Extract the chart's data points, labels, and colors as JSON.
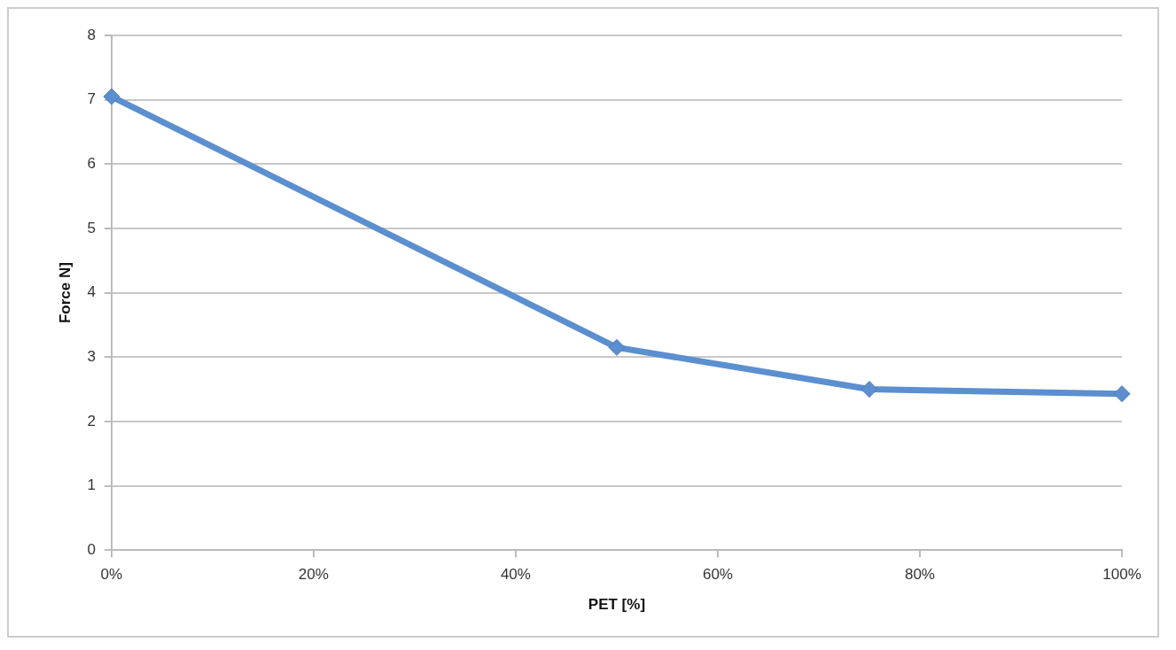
{
  "chart_data": {
    "type": "line",
    "xlabel": "PET [%]",
    "ylabel": "Force N]",
    "x": [
      0,
      50,
      75,
      100
    ],
    "series": [
      {
        "color": "#5b8fd0",
        "values": [
          7.05,
          3.15,
          2.5,
          2.43
        ]
      }
    ],
    "xlim": [
      0,
      100
    ],
    "xticks": [
      {
        "value": 0,
        "label": "0%"
      },
      {
        "value": 20,
        "label": "20%"
      },
      {
        "value": 40,
        "label": "40%"
      },
      {
        "value": 60,
        "label": "60%"
      },
      {
        "value": 80,
        "label": "80%"
      },
      {
        "value": 100,
        "label": "100%"
      }
    ],
    "ylim": [
      0,
      8
    ],
    "yticks": [
      0,
      1,
      2,
      3,
      4,
      5,
      6,
      7,
      8
    ],
    "grid": "y",
    "legend": false,
    "marker": "diamond",
    "line_style": "solid"
  }
}
